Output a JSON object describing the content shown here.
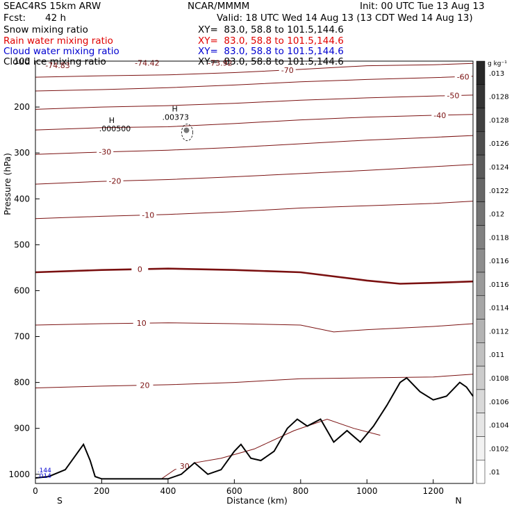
{
  "header": {
    "model": "SEAC4RS 15km ARW",
    "center": "NCAR/MMMM",
    "init": "Init: 00 UTC Tue 13 Aug 13",
    "fcst_label": "Fcst:",
    "fcst_value": "42 h",
    "valid": "Valid: 18 UTC Wed 14 Aug 13 (13 CDT Wed 14 Aug 13)",
    "fields": [
      {
        "name": "Snow mixing ratio",
        "xy": "XY=  83.0, 58.8 to 101.5,144.6",
        "color": "#000000"
      },
      {
        "name": "Rain water mixing ratio",
        "xy": "XY=  83.0, 58.8 to 101.5,144.6",
        "color": "#e00000"
      },
      {
        "name": "Cloud water mixing ratio",
        "xy": "XY=  83.0, 58.8 to 101.5,144.6",
        "color": "#0000d0"
      },
      {
        "name": "Cloud ice mixing ratio",
        "xy": "XY=  83.0, 58.8 to 101.5,144.6",
        "color": "#000000"
      }
    ]
  },
  "colors": {
    "contour": "#7a1010",
    "terrain": "#000000",
    "cloud_water": "#0000d0"
  },
  "chart_data": {
    "type": "contour cross-section",
    "xlabel": "Distance (km)",
    "ylabel": "Pressure (hPa)",
    "xlim": [
      0,
      1320
    ],
    "ylim": [
      1020,
      100
    ],
    "x_ticks": [
      0,
      200,
      400,
      600,
      800,
      1000,
      1200
    ],
    "y_ticks": [
      100,
      200,
      300,
      400,
      500,
      600,
      700,
      800,
      900,
      1000
    ],
    "endpoints": {
      "left": "S",
      "right": "N"
    },
    "colorbar": {
      "unit": "g kg⁻¹",
      "labels": [
        ".013",
        ".0128",
        ".0128",
        ".0126",
        ".0124",
        ".0122",
        ".012",
        ".0118",
        ".0116",
        ".0116",
        ".0114",
        ".0112",
        ".011",
        ".0108",
        ".0106",
        ".0104",
        ".0102",
        ".01"
      ]
    },
    "temperature_contours": [
      {
        "level": "-70",
        "label_x": 760,
        "points": [
          [
            0,
            135
          ],
          [
            200,
            132
          ],
          [
            400,
            130
          ],
          [
            600,
            125
          ],
          [
            800,
            118
          ],
          [
            1000,
            110
          ],
          [
            1200,
            108
          ],
          [
            1320,
            105
          ]
        ]
      },
      {
        "level": "-60",
        "label_x": 1290,
        "points": [
          [
            0,
            165
          ],
          [
            200,
            162
          ],
          [
            400,
            158
          ],
          [
            600,
            152
          ],
          [
            800,
            145
          ],
          [
            1000,
            140
          ],
          [
            1200,
            136
          ],
          [
            1320,
            133
          ]
        ]
      },
      {
        "level": "-50",
        "label_x": 1260,
        "points": [
          [
            0,
            205
          ],
          [
            200,
            200
          ],
          [
            400,
            197
          ],
          [
            600,
            192
          ],
          [
            800,
            185
          ],
          [
            1000,
            180
          ],
          [
            1200,
            176
          ],
          [
            1320,
            174
          ]
        ]
      },
      {
        "level": "-40",
        "label_x": 1220,
        "points": [
          [
            0,
            250
          ],
          [
            200,
            245
          ],
          [
            400,
            243
          ],
          [
            600,
            236
          ],
          [
            800,
            228
          ],
          [
            1000,
            222
          ],
          [
            1200,
            218
          ],
          [
            1320,
            216
          ]
        ]
      },
      {
        "level": "-30",
        "label_x": 210,
        "points": [
          [
            0,
            303
          ],
          [
            200,
            298
          ],
          [
            400,
            294
          ],
          [
            600,
            288
          ],
          [
            800,
            280
          ],
          [
            1000,
            272
          ],
          [
            1200,
            266
          ],
          [
            1320,
            262
          ]
        ]
      },
      {
        "level": "-20",
        "label_x": 240,
        "points": [
          [
            0,
            368
          ],
          [
            200,
            362
          ],
          [
            400,
            358
          ],
          [
            600,
            352
          ],
          [
            800,
            345
          ],
          [
            1000,
            338
          ],
          [
            1200,
            330
          ],
          [
            1320,
            325
          ]
        ]
      },
      {
        "level": "-10",
        "label_x": 340,
        "points": [
          [
            0,
            443
          ],
          [
            200,
            438
          ],
          [
            400,
            434
          ],
          [
            600,
            428
          ],
          [
            800,
            420
          ],
          [
            1000,
            415
          ],
          [
            1200,
            410
          ],
          [
            1320,
            405
          ]
        ]
      },
      {
        "level": "0",
        "label_x": 315,
        "bold": true,
        "points": [
          [
            0,
            560
          ],
          [
            200,
            555
          ],
          [
            400,
            552
          ],
          [
            600,
            555
          ],
          [
            800,
            560
          ],
          [
            1000,
            578
          ],
          [
            1100,
            585
          ],
          [
            1200,
            583
          ],
          [
            1320,
            580
          ]
        ]
      },
      {
        "level": "10",
        "label_x": 320,
        "points": [
          [
            0,
            675
          ],
          [
            200,
            672
          ],
          [
            400,
            670
          ],
          [
            600,
            672
          ],
          [
            800,
            675
          ],
          [
            900,
            690
          ],
          [
            1000,
            685
          ],
          [
            1200,
            678
          ],
          [
            1320,
            672
          ]
        ]
      },
      {
        "level": "20",
        "label_x": 330,
        "points": [
          [
            0,
            812
          ],
          [
            200,
            808
          ],
          [
            400,
            805
          ],
          [
            600,
            800
          ],
          [
            800,
            792
          ],
          [
            1000,
            790
          ],
          [
            1200,
            788
          ],
          [
            1320,
            782
          ]
        ]
      },
      {
        "level": "30",
        "label_x": 450,
        "points": [
          [
            380,
            1010
          ],
          [
            420,
            990
          ],
          [
            480,
            975
          ],
          [
            560,
            965
          ],
          [
            660,
            945
          ],
          [
            780,
            905
          ],
          [
            880,
            880
          ],
          [
            960,
            900
          ],
          [
            1040,
            915
          ]
        ]
      }
    ],
    "extrema": [
      {
        "label": "H",
        "value": ".000500",
        "x": 230,
        "p": 253
      },
      {
        "label": "H",
        "value": ".00373",
        "x": 420,
        "p": 228
      }
    ],
    "contour_value_labels": [
      {
        "text": "-74.83",
        "x": 30,
        "p": 115
      },
      {
        "text": "-74.42",
        "x": 300,
        "p": 110
      },
      {
        "text": "-73.92",
        "x": 520,
        "p": 110
      }
    ],
    "cloud_water_labels": [
      {
        "text": ".014",
        "x": 10,
        "p": 1008
      },
      {
        "text": ".144",
        "x": 10,
        "p": 996
      }
    ],
    "terrain": {
      "points": [
        [
          0,
          1008
        ],
        [
          40,
          1005
        ],
        [
          90,
          990
        ],
        [
          120,
          960
        ],
        [
          145,
          935
        ],
        [
          165,
          970
        ],
        [
          180,
          1005
        ],
        [
          200,
          1010
        ],
        [
          300,
          1010
        ],
        [
          400,
          1010
        ],
        [
          440,
          1000
        ],
        [
          480,
          975
        ],
        [
          520,
          1000
        ],
        [
          560,
          990
        ],
        [
          600,
          950
        ],
        [
          620,
          935
        ],
        [
          650,
          965
        ],
        [
          680,
          970
        ],
        [
          720,
          950
        ],
        [
          760,
          900
        ],
        [
          790,
          880
        ],
        [
          820,
          895
        ],
        [
          860,
          880
        ],
        [
          900,
          930
        ],
        [
          940,
          905
        ],
        [
          980,
          930
        ],
        [
          1020,
          895
        ],
        [
          1060,
          850
        ],
        [
          1100,
          800
        ],
        [
          1120,
          790
        ],
        [
          1160,
          820
        ],
        [
          1200,
          838
        ],
        [
          1240,
          830
        ],
        [
          1280,
          800
        ],
        [
          1300,
          810
        ],
        [
          1320,
          830
        ]
      ]
    }
  }
}
